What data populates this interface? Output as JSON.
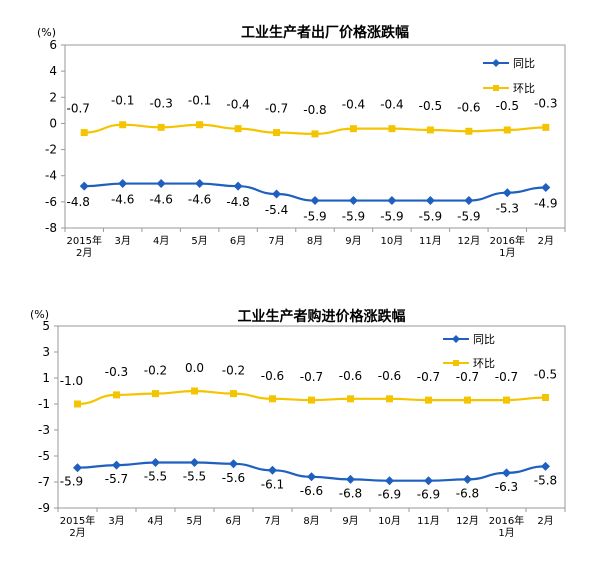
{
  "chart_data": [
    {
      "type": "line",
      "title": "工业生产者出厂价格涨跌幅",
      "unit_label": "(%)",
      "categories": [
        [
          "2015年",
          "2月"
        ],
        [
          "3月"
        ],
        [
          "4月"
        ],
        [
          "5月"
        ],
        [
          "6月"
        ],
        [
          "7月"
        ],
        [
          "8月"
        ],
        [
          "9月"
        ],
        [
          "10月"
        ],
        [
          "11月"
        ],
        [
          "12月"
        ],
        [
          "2016年",
          "1月"
        ],
        [
          "2月"
        ]
      ],
      "ylim": [
        -8,
        6
      ],
      "yticks": [
        6,
        4,
        2,
        0,
        -2,
        -4,
        -6,
        -8
      ],
      "ytick_labels": [
        "6",
        "4",
        "2",
        "0",
        "-2",
        "-4",
        "-6",
        "-8"
      ],
      "grid": false,
      "legend_position": "top-right",
      "series": [
        {
          "name": "同比",
          "color": "#1f5fbf",
          "marker": "diamond",
          "values": [
            -4.8,
            -4.6,
            -4.6,
            -4.6,
            -4.8,
            -5.4,
            -5.9,
            -5.9,
            -5.9,
            -5.9,
            -5.9,
            -5.3,
            -4.9
          ],
          "labels": [
            "-4.8",
            "-4.6",
            "-4.6",
            "-4.6",
            "-4.8",
            "-5.4",
            "-5.9",
            "-5.9",
            "-5.9",
            "-5.9",
            "-5.9",
            "-5.3",
            "-4.9"
          ]
        },
        {
          "name": "环比",
          "color": "#f5c400",
          "marker": "square",
          "values": [
            -0.7,
            -0.1,
            -0.3,
            -0.1,
            -0.4,
            -0.7,
            -0.8,
            -0.4,
            -0.4,
            -0.5,
            -0.6,
            -0.5,
            -0.3
          ],
          "labels": [
            "-0.7",
            "-0.1",
            "-0.3",
            "-0.1",
            "-0.4",
            "-0.7",
            "-0.8",
            "-0.4",
            "-0.4",
            "-0.5",
            "-0.6",
            "-0.5",
            "-0.3"
          ]
        }
      ]
    },
    {
      "type": "line",
      "title": "工业生产者购进价格涨跌幅",
      "unit_label": "(%)",
      "categories": [
        [
          "2015年",
          "2月"
        ],
        [
          "3月"
        ],
        [
          "4月"
        ],
        [
          "5月"
        ],
        [
          "6月"
        ],
        [
          "7月"
        ],
        [
          "8月"
        ],
        [
          "9月"
        ],
        [
          "10月"
        ],
        [
          "11月"
        ],
        [
          "12月"
        ],
        [
          "2016年",
          "1月"
        ],
        [
          "2月"
        ]
      ],
      "ylim": [
        -9,
        5
      ],
      "yticks": [
        5,
        3,
        1,
        -1,
        -3,
        -5,
        -7,
        -9
      ],
      "ytick_labels": [
        "5",
        "3",
        "1",
        "-1",
        "-3",
        "-5",
        "-7",
        "-9"
      ],
      "grid": false,
      "legend_position": "top-right",
      "series": [
        {
          "name": "同比",
          "color": "#1f5fbf",
          "marker": "diamond",
          "values": [
            -5.9,
            -5.7,
            -5.5,
            -5.5,
            -5.6,
            -6.1,
            -6.6,
            -6.8,
            -6.9,
            -6.9,
            -6.8,
            -6.3,
            -5.8
          ],
          "labels": [
            "-5.9",
            "-5.7",
            "-5.5",
            "-5.5",
            "-5.6",
            "-6.1",
            "-6.6",
            "-6.8",
            "-6.9",
            "-6.9",
            "-6.8",
            "-6.3",
            "-5.8"
          ]
        },
        {
          "name": "环比",
          "color": "#f5c400",
          "marker": "square",
          "values": [
            -1.0,
            -0.3,
            -0.2,
            0.0,
            -0.2,
            -0.6,
            -0.7,
            -0.6,
            -0.6,
            -0.7,
            -0.7,
            -0.7,
            -0.5
          ],
          "labels": [
            "-1.0",
            "-0.3",
            "-0.2",
            "0.0",
            "-0.2",
            "-0.6",
            "-0.7",
            "-0.6",
            "-0.6",
            "-0.7",
            "-0.7",
            "-0.7",
            "-0.5"
          ]
        }
      ]
    }
  ]
}
